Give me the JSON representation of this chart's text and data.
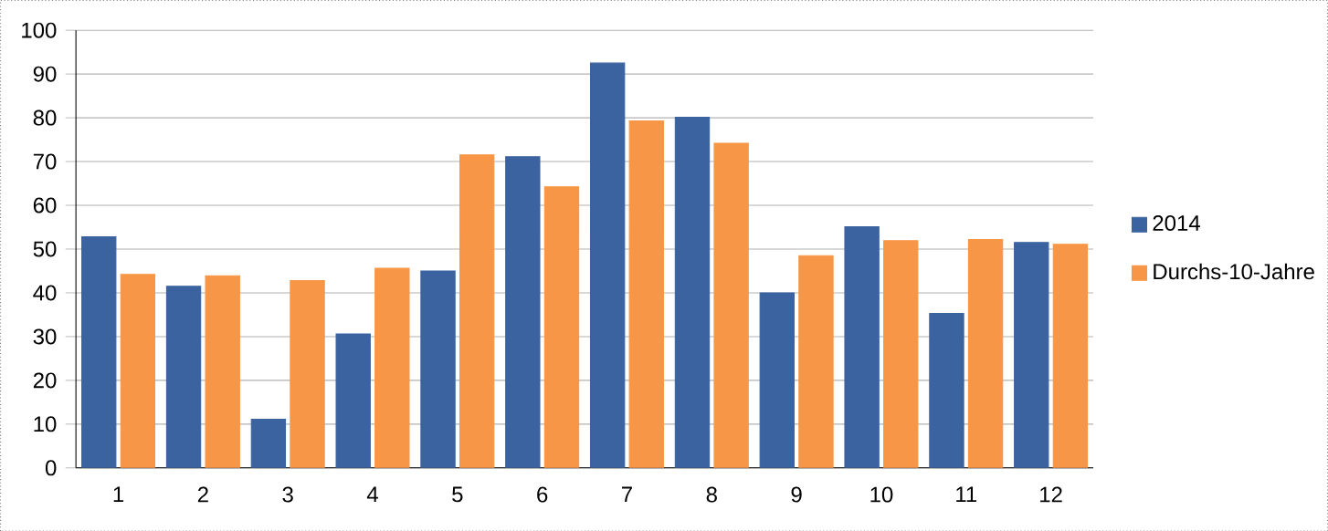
{
  "chart_data": {
    "type": "bar",
    "categories": [
      "1",
      "2",
      "3",
      "4",
      "5",
      "6",
      "7",
      "8",
      "9",
      "10",
      "11",
      "12"
    ],
    "series": [
      {
        "name": "2014",
        "color": "#3b63a0",
        "values": [
          52.8,
          41.5,
          11.1,
          30.6,
          45,
          71.1,
          92.5,
          80.1,
          40,
          55.1,
          35.3,
          51.5
        ]
      },
      {
        "name": "Durchs-10-Jahre",
        "color": "#f79646",
        "values": [
          44.2,
          43.9,
          42.8,
          45.6,
          71.5,
          64.2,
          79.3,
          74.2,
          48.5,
          51.9,
          52.2,
          51.1
        ]
      }
    ],
    "ylim": [
      0,
      100
    ],
    "yticks": [
      0,
      10,
      20,
      30,
      40,
      50,
      60,
      70,
      80,
      90,
      100
    ],
    "grid": "y",
    "legend": "right"
  }
}
